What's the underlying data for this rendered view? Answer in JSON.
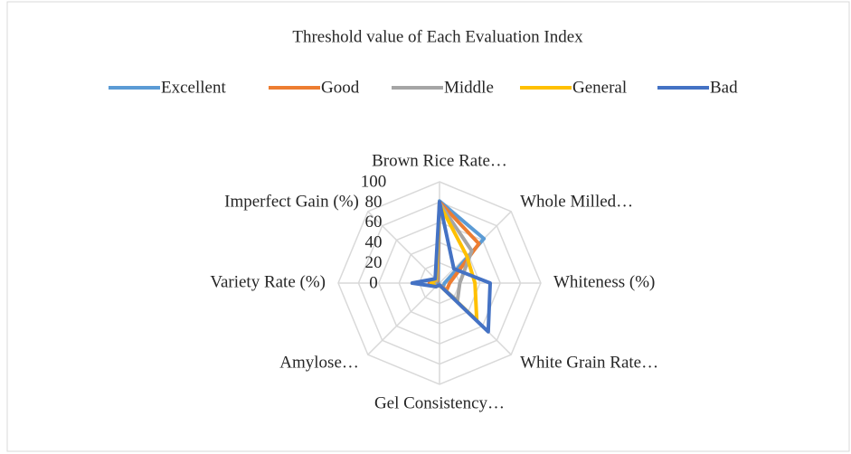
{
  "chart_data": {
    "type": "radar",
    "title": "Threshold value of Each Evaluation Index",
    "categories": [
      "Brown Rice Rate…",
      "Whole Milled…",
      "Whiteness (%)",
      "White Grain Rate…",
      "Gel Consistency…",
      "Amylose…",
      "Variety Rate (%)",
      "Imperfect Gain (%)"
    ],
    "series": [
      {
        "name": "Excellent",
        "color": "#5b9bd5",
        "values": [
          81,
          62,
          5,
          5,
          2,
          5,
          1,
          2
        ]
      },
      {
        "name": "Good",
        "color": "#ed7d31",
        "values": [
          80,
          55,
          10,
          10,
          2,
          5,
          10,
          3
        ]
      },
      {
        "name": "Middle",
        "color": "#a5a5a5",
        "values": [
          79,
          45,
          20,
          25,
          2,
          5,
          5,
          4
        ]
      },
      {
        "name": "General",
        "color": "#ffc000",
        "values": [
          78,
          38,
          35,
          52,
          2,
          5,
          8,
          5
        ]
      },
      {
        "name": "Bad",
        "color": "#4472c4",
        "values": [
          80,
          20,
          50,
          68,
          2,
          5,
          27,
          6
        ]
      }
    ],
    "ylim": [
      0,
      100
    ],
    "yticks": [
      0,
      20,
      40,
      60,
      80,
      100
    ],
    "grid": true,
    "legend": "top"
  }
}
